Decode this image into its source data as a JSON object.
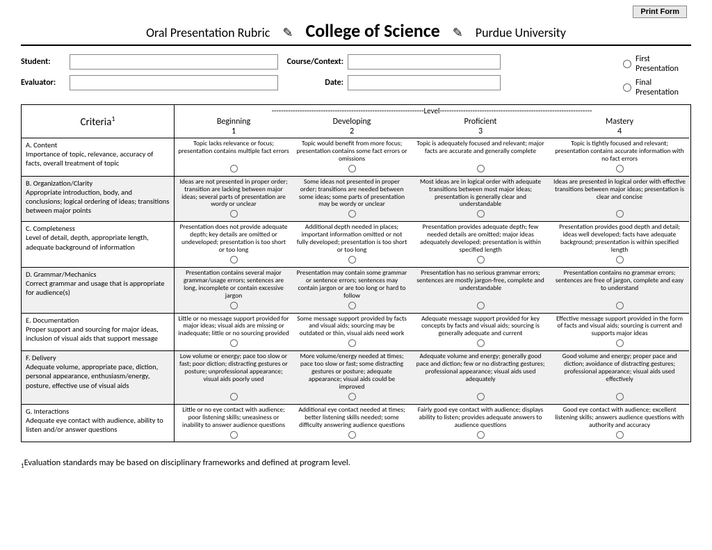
{
  "print_button": "Print Form",
  "title": {
    "left": "Oral Presentation Rubric",
    "mid": "College of Science",
    "right": "Purdue University"
  },
  "info": {
    "student_label": "Student:",
    "evaluator_label": "Evaluator:",
    "course_label": "Course/Context:",
    "date_label": "Date:",
    "first_pres": "First Presentation",
    "final_pres": "Final Presentation"
  },
  "criteria_header": "Criteria",
  "criteria_sup": "1",
  "level_divider": "-----------------------------------------------------------------Level-----------------------------------------------------------------",
  "levels": [
    {
      "name": "Beginning",
      "num": "1"
    },
    {
      "name": "Developing",
      "num": "2"
    },
    {
      "name": "Proficient",
      "num": "3"
    },
    {
      "name": "Mastery",
      "num": "4"
    }
  ],
  "rows": [
    {
      "title": "A. Content",
      "desc": "Importance of topic, relevance, accuracy of facts, overall treatment of topic",
      "shade": false,
      "cells": [
        "Topic lacks relevance or focus; presentation contains multiple fact errors",
        "Topic would benefit from more focus; presentation contains some fact errors or omissions",
        "Topic is adequately focused and relevant; major facts are accurate and generally complete",
        "Topic is tightly focused and relevant; presentation contains accurate information with no fact errors"
      ]
    },
    {
      "title": "B. Organization/Clarity",
      "desc": "Appropriate introduction, body, and conclusions; logical ordering of ideas; transitions between major points",
      "shade": true,
      "cells": [
        "Ideas are not presented in proper order; transition are lacking between major ideas; several parts of presentation are wordy or unclear",
        "Some ideas not presented in proper order; transitions are needed between some ideas; some parts of presentation may be wordy or unclear",
        "Most ideas are in logical order with adequate transitions between most major ideas; presentation is generally clear and understandable",
        "Ideas are presented in logical order with effective transitions between major ideas; presentation is clear and concise"
      ]
    },
    {
      "title": "C. Completeness",
      "desc": "Level of detail, depth, appropriate length, adequate background of information",
      "shade": false,
      "cells": [
        "Presentation does not provide adequate depth; key details are omitted or undeveloped; presentation is too short or too long",
        "Additional depth needed in places; important information omitted or not fully developed; presentation is too short or too long",
        "Presentation provides adequate depth; few needed details are omitted; major ideas adequately developed;  presentation is within specified length",
        "Presentation provides good depth and detail; ideas well developed; facts have adequate background; presentation is within specified length"
      ]
    },
    {
      "title": "D. Grammar/Mechanics",
      "desc": "Correct grammar and usage that is appropriate for audience(s)",
      "shade": true,
      "cells": [
        "Presentation contains several major grammar/usage errors; sentences are long, incomplete or contain excessive jargon",
        "Presentation may contain some grammar or sentence errors; sentences may contain jargon or are too long or hard to follow",
        "Presentation has no serious grammar errors; sentences are mostly jargon-free, complete and understandable",
        "Presentation contains no grammar errors; sentences are free of jargon, complete and easy to understand"
      ]
    },
    {
      "title": "E. Documentation",
      "desc": "Proper support and sourcing for major ideas, inclusion of visual aids that support message",
      "shade": false,
      "cells": [
        "Little or no message support provided for major ideas; visual aids are missing or inadequate; little or no sourcing provided",
        "Some message support provided by facts and visual aids; sourcing may be outdated or thin, visual aids need work",
        "Adequate message support provided for key concepts by facts and visual aids; sourcing is generally adequate and current",
        "Effective message support provided in the form of facts and visual aids; sourcing is current and supports major ideas"
      ]
    },
    {
      "title": "F. Delivery",
      "desc": "Adequate volume, appropriate pace, diction, personal appearance, enthusiasm/energy, posture, effective use of visual aids",
      "shade": true,
      "cells": [
        "Low volume or energy; pace too slow or fast; poor diction; distracting gestures or posture; unprofessional appearance; visual aids poorly used",
        "More volume/energy needed at times; pace too slow or fast; some distracting gestures or posture; adequate appearance; visual aids could be improved",
        "Adequate volume and energy; generally good pace and diction; few or no distracting gestures; professional appearance; visual aids used adequately",
        "Good volume and energy; proper pace and diction; avoidance of distracting gestures; professional appearance; visual aids used effectively"
      ]
    },
    {
      "title": "G. Interactions",
      "desc": "Adequate eye contact with audience, ability to listen and/or answer questions",
      "shade": false,
      "cells": [
        "Little or no eye contact with audience; poor listening skills; uneasiness or inability to answer audience questions",
        "Additional eye contact needed at times; better listening skills needed; some difficulty answering audience questions",
        "Fairly good eye contact with audience; displays ability to listen; provides adequate answers to audience questions",
        "Good eye contact with audience; excellent listening skills; answers audience questions with authority and accuracy"
      ]
    }
  ],
  "footnote_num": "1",
  "footnote": "Evaluation standards may be based on disciplinary frameworks and defined at program level."
}
